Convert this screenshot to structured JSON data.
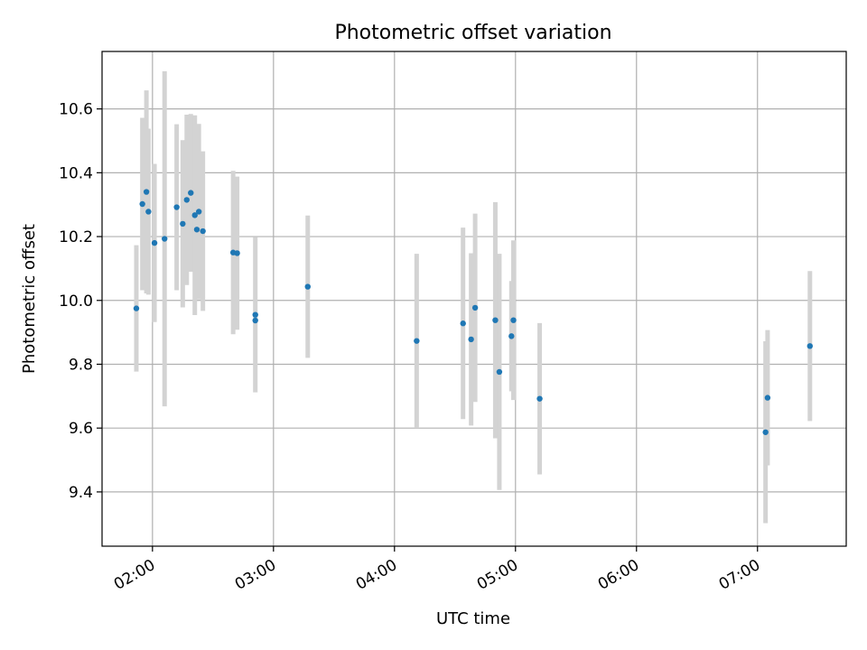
{
  "chart_data": {
    "type": "scatter",
    "title": "Photometric offset variation",
    "xlabel": "UTC time",
    "ylabel": "Photometric offset",
    "x_ticks": [
      "02:00",
      "03:00",
      "04:00",
      "05:00",
      "06:00",
      "07:00"
    ],
    "y_ticks": [
      "9.4",
      "9.6",
      "9.8",
      "10.0",
      "10.2",
      "10.4",
      "10.6"
    ],
    "xlim": [
      "01:35",
      "07:44"
    ],
    "ylim": [
      9.23,
      10.78
    ],
    "grid": true,
    "marker_color": "#1f77b4",
    "errorbar_color": "#d3d3d3",
    "points": [
      {
        "x": "01:52",
        "y": 9.975,
        "err": 0.198
      },
      {
        "x": "01:55",
        "y": 10.302,
        "err": 0.27
      },
      {
        "x": "01:57",
        "y": 10.34,
        "err": 0.318
      },
      {
        "x": "01:58",
        "y": 10.278,
        "err": 0.26
      },
      {
        "x": "02:01",
        "y": 10.18,
        "err": 0.248
      },
      {
        "x": "02:06",
        "y": 10.193,
        "err": 0.525
      },
      {
        "x": "02:12",
        "y": 10.292,
        "err": 0.26
      },
      {
        "x": "02:15",
        "y": 10.24,
        "err": 0.262
      },
      {
        "x": "02:17",
        "y": 10.315,
        "err": 0.267
      },
      {
        "x": "02:19",
        "y": 10.337,
        "err": 0.247
      },
      {
        "x": "02:21",
        "y": 10.267,
        "err": 0.313
      },
      {
        "x": "02:22",
        "y": 10.222,
        "err": 0.202
      },
      {
        "x": "02:23",
        "y": 10.278,
        "err": 0.275
      },
      {
        "x": "02:25",
        "y": 10.217,
        "err": 0.25
      },
      {
        "x": "02:40",
        "y": 10.15,
        "err": 0.256
      },
      {
        "x": "02:42",
        "y": 10.148,
        "err": 0.24
      },
      {
        "x": "02:51",
        "y": 9.955,
        "err": 0.243
      },
      {
        "x": "02:51",
        "y": 9.937,
        "err": 0.0
      },
      {
        "x": "03:17",
        "y": 10.043,
        "err": 0.223
      },
      {
        "x": "04:11",
        "y": 9.873,
        "err": 0.273
      },
      {
        "x": "04:34",
        "y": 9.928,
        "err": 0.3
      },
      {
        "x": "04:38",
        "y": 9.878,
        "err": 0.27
      },
      {
        "x": "04:40",
        "y": 9.977,
        "err": 0.295
      },
      {
        "x": "04:50",
        "y": 9.938,
        "err": 0.37
      },
      {
        "x": "04:52",
        "y": 9.776,
        "err": 0.37
      },
      {
        "x": "04:58",
        "y": 9.888,
        "err": 0.173
      },
      {
        "x": "04:59",
        "y": 9.938,
        "err": 0.25
      },
      {
        "x": "05:12",
        "y": 9.692,
        "err": 0.237
      },
      {
        "x": "07:04",
        "y": 9.587,
        "err": 0.285
      },
      {
        "x": "07:05",
        "y": 9.695,
        "err": 0.212
      },
      {
        "x": "07:26",
        "y": 9.857,
        "err": 0.235
      }
    ]
  }
}
